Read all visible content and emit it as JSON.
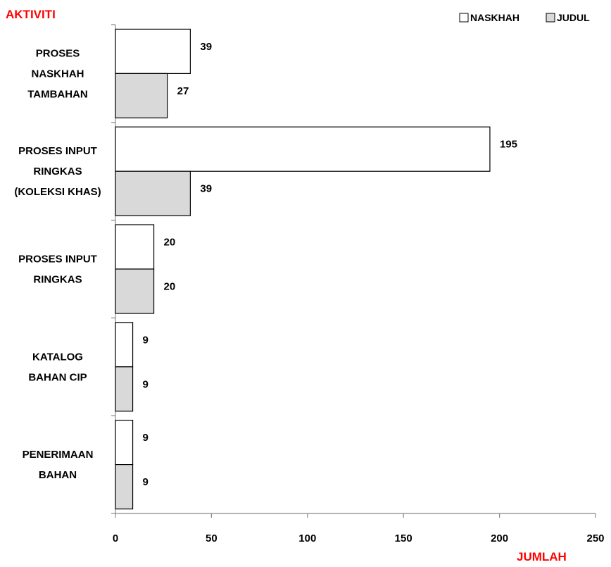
{
  "chart_data": {
    "type": "bar",
    "orientation": "horizontal",
    "categories": [
      [
        "PROSES",
        "NASKHAH",
        "TAMBAHAN"
      ],
      [
        "PROSES INPUT",
        "RINGKAS",
        "(KOLEKSI KHAS)"
      ],
      [
        "PROSES INPUT",
        "RINGKAS"
      ],
      [
        "KATALOG",
        "BAHAN CIP"
      ],
      [
        "PENERIMAAN",
        "BAHAN"
      ]
    ],
    "series": [
      {
        "name": "NASKHAH",
        "values": [
          39,
          195,
          20,
          9,
          9
        ],
        "color": "#ffffff"
      },
      {
        "name": "JUDUL",
        "values": [
          27,
          39,
          20,
          9,
          9
        ],
        "color": "#d9d9d9"
      }
    ],
    "xlabel": "JUMLAH",
    "ylabel": "AKTIVITI",
    "xlim": [
      0,
      250
    ],
    "xticks": [
      "0",
      "50",
      "100",
      "150",
      "200",
      "250"
    ],
    "grid": false,
    "legend_position": "top-right",
    "axis_title_color": "#ff0000"
  }
}
